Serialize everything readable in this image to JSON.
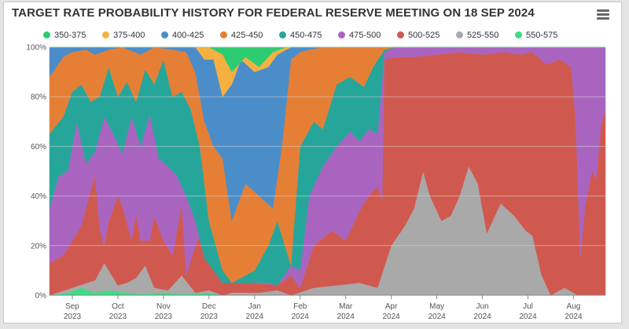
{
  "chart_data": {
    "type": "area",
    "title": "TARGET RATE PROBABILITY HISTORY FOR FEDERAL RESERVE MEETING ON 18 SEP 2024",
    "stacked": true,
    "y_unit": "%",
    "ylim": [
      0,
      100
    ],
    "y_ticks": [
      "0%",
      "20%",
      "40%",
      "60%",
      "80%",
      "100%"
    ],
    "x_ticks": [
      {
        "month": "Sep",
        "year": "2023"
      },
      {
        "month": "Oct",
        "year": "2023"
      },
      {
        "month": "Nov",
        "year": "2023"
      },
      {
        "month": "Dec",
        "year": "2023"
      },
      {
        "month": "Jan",
        "year": "2024"
      },
      {
        "month": "Feb",
        "year": "2024"
      },
      {
        "month": "Mar",
        "year": "2024"
      },
      {
        "month": "Apr",
        "year": "2024"
      },
      {
        "month": "May",
        "year": "2024"
      },
      {
        "month": "Jun",
        "year": "2024"
      },
      {
        "month": "Jul",
        "year": "2024"
      },
      {
        "month": "Aug",
        "year": "2024"
      }
    ],
    "x_index_range": [
      0,
      12.2
    ],
    "series": [
      {
        "name": "550-575",
        "color": "#3ddc84",
        "points": [
          [
            0,
            0
          ],
          [
            0.4,
            1
          ],
          [
            0.7,
            3
          ],
          [
            1.0,
            1
          ],
          [
            1.3,
            2
          ],
          [
            1.7,
            1
          ],
          [
            2.0,
            0.5
          ],
          [
            2.5,
            1
          ],
          [
            3.0,
            0.5
          ],
          [
            3.3,
            1
          ],
          [
            4.0,
            0
          ],
          [
            12.2,
            0
          ]
        ]
      },
      {
        "name": "525-550",
        "color": "#a9a9a9",
        "points": [
          [
            0,
            0
          ],
          [
            0.5,
            3
          ],
          [
            1.0,
            6
          ],
          [
            1.2,
            13
          ],
          [
            1.5,
            4
          ],
          [
            1.7,
            5
          ],
          [
            1.9,
            7
          ],
          [
            2.1,
            12
          ],
          [
            2.3,
            3
          ],
          [
            2.6,
            2
          ],
          [
            2.9,
            8
          ],
          [
            3.2,
            1
          ],
          [
            3.5,
            2
          ],
          [
            3.8,
            0
          ],
          [
            4.0,
            1
          ],
          [
            4.6,
            1
          ],
          [
            5.0,
            2
          ],
          [
            5.3,
            0
          ],
          [
            5.8,
            3
          ],
          [
            6.3,
            4
          ],
          [
            6.8,
            5
          ],
          [
            7.2,
            3
          ],
          [
            7.5,
            20
          ],
          [
            7.8,
            28
          ],
          [
            8.0,
            35
          ],
          [
            8.2,
            50
          ],
          [
            8.35,
            40
          ],
          [
            8.6,
            30
          ],
          [
            8.8,
            32
          ],
          [
            9.0,
            40
          ],
          [
            9.2,
            52
          ],
          [
            9.4,
            45
          ],
          [
            9.6,
            25
          ],
          [
            9.9,
            37
          ],
          [
            10.2,
            32
          ],
          [
            10.45,
            26
          ],
          [
            10.6,
            24
          ],
          [
            10.8,
            8
          ],
          [
            11.0,
            0
          ],
          [
            11.3,
            3
          ],
          [
            11.6,
            0
          ],
          [
            12.2,
            0
          ]
        ]
      },
      {
        "name": "500-525",
        "color": "#d0594f",
        "points": [
          [
            0,
            13
          ],
          [
            0.3,
            16
          ],
          [
            0.5,
            22
          ],
          [
            0.7,
            28
          ],
          [
            0.9,
            42
          ],
          [
            1.0,
            48
          ],
          [
            1.1,
            27
          ],
          [
            1.2,
            20
          ],
          [
            1.3,
            30
          ],
          [
            1.5,
            40
          ],
          [
            1.6,
            36
          ],
          [
            1.8,
            22
          ],
          [
            1.9,
            33
          ],
          [
            2.0,
            22
          ],
          [
            2.2,
            22
          ],
          [
            2.3,
            32
          ],
          [
            2.5,
            22
          ],
          [
            2.7,
            16
          ],
          [
            2.9,
            37
          ],
          [
            3.0,
            8
          ],
          [
            3.2,
            20
          ],
          [
            3.5,
            30
          ],
          [
            3.7,
            13
          ],
          [
            4.0,
            5
          ],
          [
            4.5,
            5
          ],
          [
            5.0,
            4
          ],
          [
            5.3,
            8
          ],
          [
            5.5,
            3
          ],
          [
            5.8,
            20
          ],
          [
            6.2,
            26
          ],
          [
            6.5,
            22
          ],
          [
            6.8,
            34
          ],
          [
            7.0,
            40
          ],
          [
            7.2,
            44
          ],
          [
            7.3,
            38
          ],
          [
            7.35,
            95
          ],
          [
            7.6,
            96
          ],
          [
            8.0,
            96
          ],
          [
            8.5,
            97
          ],
          [
            9.0,
            98
          ],
          [
            9.5,
            97
          ],
          [
            10.0,
            98
          ],
          [
            10.3,
            97
          ],
          [
            10.6,
            98
          ],
          [
            10.9,
            93
          ],
          [
            11.2,
            95
          ],
          [
            11.45,
            92
          ],
          [
            11.55,
            70
          ],
          [
            11.65,
            15
          ],
          [
            11.75,
            35
          ],
          [
            11.9,
            50
          ],
          [
            12.0,
            47
          ],
          [
            12.1,
            68
          ],
          [
            12.2,
            75
          ]
        ]
      },
      {
        "name": "475-500",
        "color": "#a964c0",
        "points": [
          [
            0,
            35
          ],
          [
            0.2,
            48
          ],
          [
            0.4,
            50
          ],
          [
            0.6,
            70
          ],
          [
            0.8,
            53
          ],
          [
            1.0,
            58
          ],
          [
            1.2,
            72
          ],
          [
            1.4,
            65
          ],
          [
            1.6,
            57
          ],
          [
            1.8,
            72
          ],
          [
            2.0,
            60
          ],
          [
            2.2,
            73
          ],
          [
            2.4,
            55
          ],
          [
            2.6,
            52
          ],
          [
            2.8,
            48
          ],
          [
            3.0,
            40
          ],
          [
            3.2,
            30
          ],
          [
            3.4,
            15
          ],
          [
            3.6,
            10
          ],
          [
            3.8,
            5
          ],
          [
            4.2,
            5
          ],
          [
            4.8,
            5
          ],
          [
            5.0,
            4
          ],
          [
            5.3,
            12
          ],
          [
            5.5,
            10
          ],
          [
            5.7,
            40
          ],
          [
            6.0,
            52
          ],
          [
            6.3,
            60
          ],
          [
            6.6,
            66
          ],
          [
            6.8,
            62
          ],
          [
            7.0,
            67
          ],
          [
            7.2,
            65
          ],
          [
            7.35,
            98
          ],
          [
            7.6,
            100
          ],
          [
            12.2,
            100
          ]
        ]
      },
      {
        "name": "450-475",
        "color": "#26a69a",
        "points": [
          [
            0,
            65
          ],
          [
            0.3,
            72
          ],
          [
            0.5,
            82
          ],
          [
            0.7,
            85
          ],
          [
            0.9,
            78
          ],
          [
            1.1,
            80
          ],
          [
            1.3,
            92
          ],
          [
            1.5,
            80
          ],
          [
            1.7,
            86
          ],
          [
            1.9,
            78
          ],
          [
            2.1,
            91
          ],
          [
            2.3,
            85
          ],
          [
            2.5,
            95
          ],
          [
            2.7,
            80
          ],
          [
            2.9,
            82
          ],
          [
            3.1,
            75
          ],
          [
            3.3,
            60
          ],
          [
            3.5,
            30
          ],
          [
            3.8,
            10
          ],
          [
            4.0,
            5
          ],
          [
            4.5,
            10
          ],
          [
            4.8,
            20
          ],
          [
            5.0,
            30
          ],
          [
            5.3,
            12
          ],
          [
            5.5,
            60
          ],
          [
            5.8,
            70
          ],
          [
            6.0,
            67
          ],
          [
            6.3,
            85
          ],
          [
            6.6,
            88
          ],
          [
            6.9,
            84
          ],
          [
            7.1,
            92
          ],
          [
            7.35,
            99
          ],
          [
            7.6,
            100
          ],
          [
            12.2,
            100
          ]
        ]
      },
      {
        "name": "425-450",
        "color": "#e57f36",
        "points": [
          [
            0,
            88
          ],
          [
            0.3,
            96
          ],
          [
            0.5,
            98
          ],
          [
            0.8,
            99
          ],
          [
            1.0,
            97
          ],
          [
            1.3,
            99
          ],
          [
            1.6,
            100
          ],
          [
            2.0,
            97
          ],
          [
            2.3,
            100
          ],
          [
            2.7,
            99
          ],
          [
            3.0,
            98
          ],
          [
            3.2,
            90
          ],
          [
            3.4,
            70
          ],
          [
            3.6,
            60
          ],
          [
            3.8,
            55
          ],
          [
            4.0,
            30
          ],
          [
            4.3,
            45
          ],
          [
            4.6,
            40
          ],
          [
            4.9,
            35
          ],
          [
            5.1,
            60
          ],
          [
            5.3,
            95
          ],
          [
            5.5,
            98
          ],
          [
            5.7,
            99
          ],
          [
            6.0,
            100
          ],
          [
            12.2,
            100
          ]
        ]
      },
      {
        "name": "400-425",
        "color": "#4b8dc9",
        "points": [
          [
            0,
            100
          ],
          [
            3.1,
            100
          ],
          [
            3.2,
            100
          ],
          [
            3.4,
            95
          ],
          [
            3.6,
            95
          ],
          [
            3.8,
            80
          ],
          [
            4.0,
            85
          ],
          [
            4.2,
            95
          ],
          [
            4.5,
            90
          ],
          [
            4.8,
            92
          ],
          [
            5.0,
            97
          ],
          [
            5.3,
            100
          ],
          [
            12.2,
            100
          ]
        ]
      },
      {
        "name": "375-400",
        "color": "#f5b041",
        "points": [
          [
            0,
            100
          ],
          [
            3.5,
            100
          ],
          [
            3.8,
            97
          ],
          [
            4.0,
            90
          ],
          [
            4.3,
            96
          ],
          [
            4.6,
            92
          ],
          [
            4.9,
            98
          ],
          [
            5.2,
            100
          ],
          [
            12.2,
            100
          ]
        ]
      },
      {
        "name": "350-375",
        "color": "#2ecc71",
        "points": [
          [
            0,
            100
          ],
          [
            12.2,
            100
          ]
        ]
      }
    ]
  }
}
